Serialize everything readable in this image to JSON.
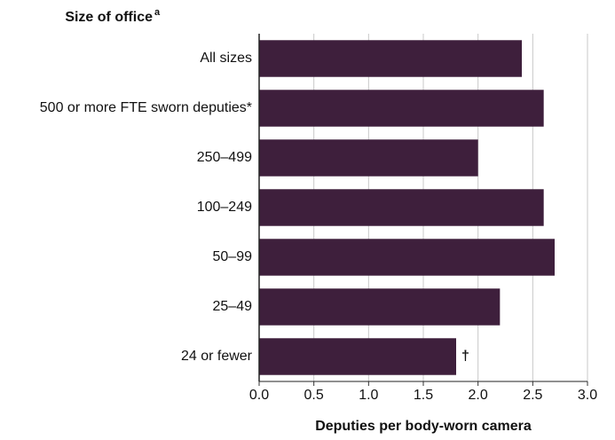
{
  "chart_data": {
    "type": "barh",
    "title": "Size of office",
    "title_superscript": "a",
    "x_label": "Deputies per body-worn camera",
    "categories": [
      "All sizes",
      "500 or more FTE sworn deputies*",
      "250–499",
      "100–249",
      "50–99",
      "25–49",
      "24 or fewer"
    ],
    "values": [
      2.4,
      2.6,
      2.0,
      2.6,
      2.7,
      2.2,
      1.8
    ],
    "color": "#3e1f3c",
    "xlim": [
      0,
      3
    ],
    "xticks": [
      {
        "value": 0,
        "label": "0.0"
      },
      0.5,
      {
        "value": 1,
        "label": "1.0"
      },
      1.5,
      {
        "value": 2,
        "label": "2.0"
      },
      2.5,
      {
        "value": 3,
        "label": "3.0"
      }
    ],
    "grid": true,
    "annotations": [
      {
        "category": "24 or fewer",
        "text": "†"
      }
    ]
  }
}
